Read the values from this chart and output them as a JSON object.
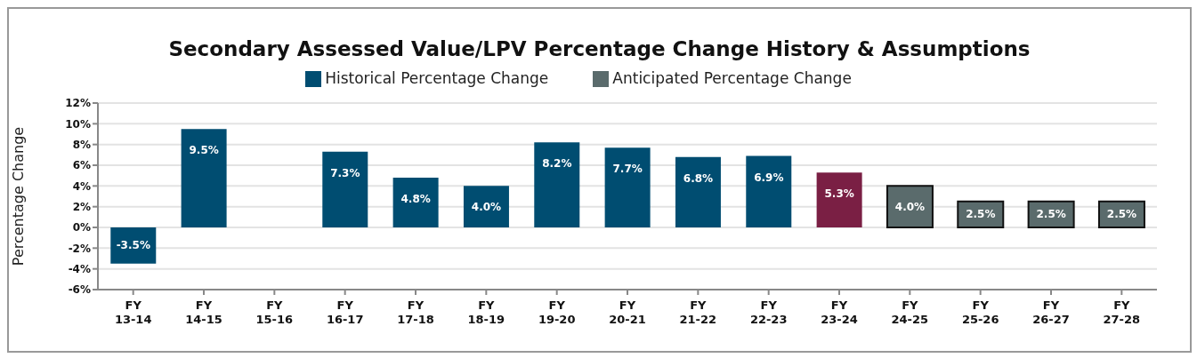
{
  "chart_data": {
    "type": "bar",
    "title": "Secondary Assessed Value/LPV Percentage Change History & Assumptions",
    "ylabel": "Percentage Change",
    "categories": [
      "FY 13-14",
      "FY 14-15",
      "FY 15-16",
      "FY 16-17",
      "FY 17-18",
      "FY 18-19",
      "FY 19-20",
      "FY 20-21",
      "FY 21-22",
      "FY 22-23",
      "FY 23-24",
      "FY 24-25",
      "FY 25-26",
      "FY 26-27",
      "FY 27-28"
    ],
    "stacked": true,
    "series": [
      {
        "name": "Historical Percentage Change",
        "color": "#004d71",
        "colors": [
          "#004d71",
          "#004d71",
          "#004d71",
          "#004d71",
          "#004d71",
          "#004d71",
          "#004d71",
          "#004d71",
          "#004d71",
          "#004d71",
          "#7a1f44",
          null,
          null,
          null,
          null
        ],
        "values": [
          -3.5,
          9.5,
          null,
          7.3,
          4.8,
          4.0,
          8.2,
          7.7,
          6.8,
          6.9,
          5.3,
          null,
          null,
          null,
          null
        ],
        "value_labels": [
          "-3.5%",
          "9.5%",
          null,
          "7.3%",
          "4.8%",
          "4.0%",
          "8.2%",
          "7.7%",
          "6.8%",
          "6.9%",
          "5.3%",
          null,
          null,
          null,
          null
        ]
      },
      {
        "name": "Anticipated Percentage Change",
        "color": "#5a6b6c",
        "values": [
          null,
          null,
          null,
          null,
          null,
          null,
          null,
          null,
          null,
          null,
          null,
          4.0,
          2.5,
          2.5,
          2.5
        ],
        "value_labels": [
          null,
          null,
          null,
          null,
          null,
          null,
          null,
          null,
          null,
          null,
          null,
          "4.0%",
          "2.5%",
          "2.5%",
          "2.5%"
        ]
      }
    ],
    "ylim": [
      -6,
      12
    ],
    "yticks": [
      {
        "value": -6,
        "label": "-6%"
      },
      {
        "value": -4,
        "label": "-4%"
      },
      {
        "value": -2,
        "label": "-2%"
      },
      {
        "value": 0,
        "label": "0%"
      },
      {
        "value": 2,
        "label": "2%"
      },
      {
        "value": 4,
        "label": "4%"
      },
      {
        "value": 6,
        "label": "6%"
      },
      {
        "value": 8,
        "label": "8%"
      },
      {
        "value": 10,
        "label": "10%"
      },
      {
        "value": 12,
        "label": "12%"
      }
    ],
    "grid": "y",
    "legend": "top"
  }
}
